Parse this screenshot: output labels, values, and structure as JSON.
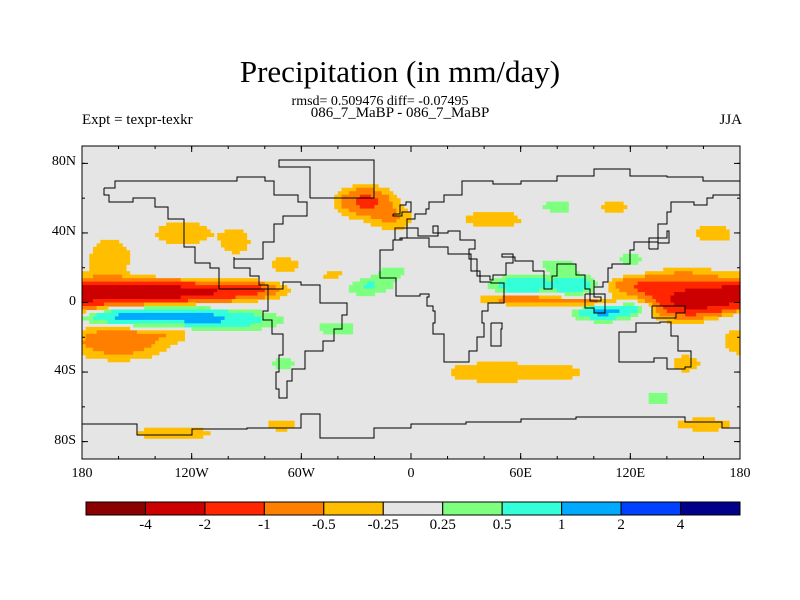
{
  "figure": {
    "title": "Precipitation (in mm/day)",
    "stats": "rmsd= 0.509476 diff= -0.07495",
    "subtitle": "086_7_MaBP - 086_7_MaBP",
    "experiment": "Expt = texpr-texkr",
    "season": "JJA"
  },
  "chart_data": {
    "type": "heatmap",
    "title": "Precipitation (in mm/day)",
    "variable": "Precipitation difference",
    "units": "mm/day",
    "projection": "cylindrical equidistant",
    "x_range": [
      180,
      -180
    ],
    "y_range": [
      -90,
      90
    ],
    "x_ticks": [
      "180",
      "120W",
      "60W",
      "0",
      "60E",
      "120E",
      "180"
    ],
    "y_ticks": [
      "80N",
      "40N",
      "0",
      "40S",
      "80S"
    ],
    "levels": [
      -4,
      -2,
      -1,
      -0.5,
      -0.25,
      0.25,
      0.5,
      1,
      2,
      4
    ],
    "colorbar_labels": [
      "-4",
      "-2",
      "-1",
      "-0.5",
      "-0.25",
      "0.25",
      "0.5",
      "1",
      "2",
      "4"
    ],
    "colors": [
      "#8b0000",
      "#cc0000",
      "#ff2600",
      "#ff7f00",
      "#ffbf00",
      "#e5e5e5",
      "#7fff7f",
      "#33ffd9",
      "#00aaff",
      "#0040ff",
      "#00008b"
    ],
    "background": "#e5e5e5",
    "blobs": [
      {
        "lon": -165,
        "lat": 6,
        "dlon": 40,
        "dlat": 6,
        "v": -2.6
      },
      {
        "lon": -120,
        "lat": 6,
        "dlon": 35,
        "dlat": 5,
        "v": -1.8
      },
      {
        "lon": -90,
        "lat": 8,
        "dlon": 15,
        "dlat": 4,
        "v": -0.8
      },
      {
        "lon": -150,
        "lat": -8,
        "dlon": 35,
        "dlat": 5,
        "v": 1.3
      },
      {
        "lon": -110,
        "lat": -10,
        "dlon": 35,
        "dlat": 6,
        "v": 0.9
      },
      {
        "lon": -160,
        "lat": -22,
        "dlon": 25,
        "dlat": 10,
        "v": -0.9
      },
      {
        "lon": -130,
        "lat": -15,
        "dlon": 12,
        "dlat": 6,
        "v": -0.5
      },
      {
        "lon": -165,
        "lat": 25,
        "dlon": 15,
        "dlat": 15,
        "v": -0.4
      },
      {
        "lon": -125,
        "lat": 40,
        "dlon": 20,
        "dlat": 10,
        "v": -0.4
      },
      {
        "lon": -95,
        "lat": 35,
        "dlon": 10,
        "dlat": 10,
        "v": -0.35
      },
      {
        "lon": -70,
        "lat": 22,
        "dlon": 12,
        "dlat": 7,
        "v": -0.35
      },
      {
        "lon": -40,
        "lat": 15,
        "dlon": 15,
        "dlat": 7,
        "v": -0.35
      },
      {
        "lon": -40,
        "lat": -15,
        "dlon": 15,
        "dlat": 6,
        "v": 0.35
      },
      {
        "lon": -25,
        "lat": 58,
        "dlon": 14,
        "dlat": 8,
        "v": -1.2
      },
      {
        "lon": -10,
        "lat": 48,
        "dlon": 12,
        "dlat": 7,
        "v": -0.5
      },
      {
        "lon": 45,
        "lat": 48,
        "dlon": 22,
        "dlat": 7,
        "v": -0.4
      },
      {
        "lon": 80,
        "lat": 55,
        "dlon": 15,
        "dlat": 6,
        "v": 0.35
      },
      {
        "lon": -25,
        "lat": 10,
        "dlon": 15,
        "dlat": 6,
        "v": 0.6
      },
      {
        "lon": -10,
        "lat": 18,
        "dlon": 10,
        "dlat": 5,
        "v": 0.35
      },
      {
        "lon": 60,
        "lat": 10,
        "dlon": 15,
        "dlat": 5,
        "v": 1.0
      },
      {
        "lon": 90,
        "lat": 10,
        "dlon": 15,
        "dlat": 6,
        "v": 0.8
      },
      {
        "lon": 60,
        "lat": 2,
        "dlon": 22,
        "dlat": 3,
        "v": -0.8
      },
      {
        "lon": 100,
        "lat": 0,
        "dlon": 20,
        "dlat": 3,
        "v": -0.9
      },
      {
        "lon": 80,
        "lat": 22,
        "dlon": 15,
        "dlat": 5,
        "v": 0.35
      },
      {
        "lon": 105,
        "lat": -5,
        "dlon": 15,
        "dlat": 5,
        "v": 1.2
      },
      {
        "lon": 125,
        "lat": -2,
        "dlon": 15,
        "dlat": 5,
        "v": 1.0
      },
      {
        "lon": 155,
        "lat": 0,
        "dlon": 28,
        "dlat": 8,
        "v": -2.4
      },
      {
        "lon": 125,
        "lat": 10,
        "dlon": 20,
        "dlat": 5,
        "v": -0.8
      },
      {
        "lon": 150,
        "lat": 15,
        "dlon": 22,
        "dlat": 6,
        "v": -0.5
      },
      {
        "lon": 165,
        "lat": 40,
        "dlon": 15,
        "dlat": 8,
        "v": -0.35
      },
      {
        "lon": 110,
        "lat": 55,
        "dlon": 15,
        "dlat": 5,
        "v": -0.35
      },
      {
        "lon": 150,
        "lat": -35,
        "dlon": 10,
        "dlat": 6,
        "v": -0.4
      },
      {
        "lon": 45,
        "lat": -40,
        "dlon": 35,
        "dlat": 8,
        "v": -0.4
      },
      {
        "lon": 80,
        "lat": -40,
        "dlon": 15,
        "dlat": 5,
        "v": -0.35
      },
      {
        "lon": 160,
        "lat": -70,
        "dlon": 20,
        "dlat": 5,
        "v": -0.4
      },
      {
        "lon": -130,
        "lat": -75,
        "dlon": 35,
        "dlat": 6,
        "v": -0.35
      },
      {
        "lon": -70,
        "lat": -70,
        "dlon": 12,
        "dlat": 5,
        "v": -0.35
      },
      {
        "lon": 135,
        "lat": -55,
        "dlon": 10,
        "dlat": 5,
        "v": 0.35
      },
      {
        "lon": -70,
        "lat": -35,
        "dlon": 10,
        "dlat": 5,
        "v": 0.35
      },
      {
        "lon": 120,
        "lat": 25,
        "dlon": 10,
        "dlat": 6,
        "v": 0.35
      }
    ],
    "coastlines": [
      [
        [
          -168,
          66
        ],
        [
          -162,
          70
        ],
        [
          -140,
          70
        ],
        [
          -120,
          70
        ],
        [
          -95,
          72
        ],
        [
          -80,
          70
        ],
        [
          -75,
          62
        ],
        [
          -62,
          58
        ],
        [
          -57,
          50
        ],
        [
          -70,
          45
        ],
        [
          -75,
          35
        ],
        [
          -81,
          25
        ],
        [
          -97,
          26
        ],
        [
          -97,
          20
        ],
        [
          -88,
          15
        ],
        [
          -83,
          10
        ],
        [
          -78,
          8
        ],
        [
          -105,
          20
        ],
        [
          -110,
          23
        ],
        [
          -118,
          32
        ],
        [
          -124,
          40
        ],
        [
          -124,
          48
        ],
        [
          -133,
          55
        ],
        [
          -140,
          60
        ],
        [
          -152,
          58
        ],
        [
          -165,
          62
        ],
        [
          -168,
          66
        ]
      ],
      [
        [
          -78,
          8
        ],
        [
          -70,
          12
        ],
        [
          -60,
          10
        ],
        [
          -50,
          0
        ],
        [
          -35,
          -7
        ],
        [
          -38,
          -15
        ],
        [
          -42,
          -22
        ],
        [
          -48,
          -28
        ],
        [
          -58,
          -38
        ],
        [
          -65,
          -45
        ],
        [
          -68,
          -55
        ],
        [
          -72,
          -50
        ],
        [
          -74,
          -40
        ],
        [
          -72,
          -30
        ],
        [
          -70,
          -18
        ],
        [
          -76,
          -10
        ],
        [
          -81,
          -5
        ],
        [
          -78,
          8
        ]
      ],
      [
        [
          -10,
          36
        ],
        [
          -9,
          43
        ],
        [
          -2,
          48
        ],
        [
          2,
          51
        ],
        [
          8,
          54
        ],
        [
          10,
          58
        ],
        [
          18,
          62
        ],
        [
          28,
          70
        ],
        [
          45,
          68
        ],
        [
          60,
          70
        ],
        [
          80,
          73
        ],
        [
          100,
          77
        ],
        [
          120,
          73
        ],
        [
          140,
          72
        ],
        [
          160,
          70
        ],
        [
          180,
          68
        ]
      ],
      [
        [
          180,
          62
        ],
        [
          165,
          60
        ],
        [
          162,
          56
        ],
        [
          155,
          58
        ],
        [
          142,
          52
        ],
        [
          140,
          45
        ],
        [
          135,
          35
        ],
        [
          122,
          30
        ],
        [
          120,
          22
        ],
        [
          110,
          20
        ],
        [
          108,
          12
        ],
        [
          105,
          9
        ],
        [
          100,
          13
        ],
        [
          100,
          3
        ],
        [
          104,
          1
        ],
        [
          98,
          8
        ],
        [
          95,
          16
        ],
        [
          90,
          22
        ],
        [
          80,
          15
        ],
        [
          77,
          8
        ],
        [
          73,
          18
        ],
        [
          67,
          24
        ],
        [
          57,
          26
        ],
        [
          50,
          28
        ],
        [
          56,
          23
        ],
        [
          52,
          16
        ],
        [
          45,
          13
        ],
        [
          43,
          15
        ],
        [
          36,
          25
        ],
        [
          32,
          31
        ],
        [
          35,
          36
        ],
        [
          27,
          37
        ],
        [
          27,
          41
        ],
        [
          20,
          40
        ],
        [
          12,
          44
        ],
        [
          15,
          38
        ],
        [
          4,
          43
        ],
        [
          -2,
          37
        ],
        [
          -5,
          36
        ],
        [
          -10,
          36
        ]
      ],
      [
        [
          -6,
          36
        ],
        [
          -10,
          30
        ],
        [
          -17,
          20
        ],
        [
          -17,
          14
        ],
        [
          -8,
          4
        ],
        [
          5,
          5
        ],
        [
          10,
          3
        ],
        [
          9,
          -2
        ],
        [
          12,
          -5
        ],
        [
          13,
          -12
        ],
        [
          12,
          -18
        ],
        [
          18,
          -34
        ],
        [
          25,
          -34
        ],
        [
          32,
          -28
        ],
        [
          36,
          -20
        ],
        [
          40,
          -12
        ],
        [
          39,
          -5
        ],
        [
          42,
          0
        ],
        [
          51,
          11
        ],
        [
          44,
          12
        ],
        [
          38,
          18
        ],
        [
          33,
          28
        ],
        [
          20,
          32
        ],
        [
          10,
          37
        ],
        [
          -6,
          36
        ]
      ],
      [
        [
          114,
          -22
        ],
        [
          114,
          -34
        ],
        [
          122,
          -34
        ],
        [
          133,
          -32
        ],
        [
          140,
          -38
        ],
        [
          150,
          -37
        ],
        [
          153,
          -28
        ],
        [
          146,
          -19
        ],
        [
          142,
          -11
        ],
        [
          136,
          -12
        ],
        [
          130,
          -12
        ],
        [
          123,
          -17
        ],
        [
          114,
          -22
        ]
      ],
      [
        [
          -55,
          60
        ],
        [
          -45,
          60
        ],
        [
          -20,
          70
        ],
        [
          -20,
          82
        ],
        [
          -60,
          82
        ],
        [
          -72,
          78
        ],
        [
          -55,
          60
        ]
      ],
      [
        [
          -180,
          -70
        ],
        [
          -150,
          -76
        ],
        [
          -120,
          -73
        ],
        [
          -90,
          -72
        ],
        [
          -60,
          -64
        ],
        [
          -50,
          -78
        ],
        [
          -20,
          -72
        ],
        [
          0,
          -70
        ],
        [
          30,
          -69
        ],
        [
          60,
          -67
        ],
        [
          90,
          -66
        ],
        [
          120,
          -66
        ],
        [
          150,
          -69
        ],
        [
          170,
          -72
        ],
        [
          180,
          -70
        ]
      ],
      [
        [
          44,
          -12
        ],
        [
          50,
          -15
        ],
        [
          49,
          -25
        ],
        [
          44,
          -24
        ],
        [
          44,
          -12
        ]
      ],
      [
        [
          -10,
          51
        ],
        [
          -6,
          56
        ],
        [
          -3,
          58
        ],
        [
          0,
          52
        ],
        [
          -5,
          50
        ],
        [
          -10,
          51
        ]
      ],
      [
        [
          130,
          31
        ],
        [
          135,
          34
        ],
        [
          141,
          41
        ],
        [
          140,
          37
        ],
        [
          130,
          31
        ]
      ],
      [
        [
          95,
          5
        ],
        [
          106,
          -6
        ],
        [
          100,
          -3
        ],
        [
          95,
          5
        ]
      ],
      [
        [
          132,
          -2
        ],
        [
          150,
          -6
        ],
        [
          145,
          -9
        ],
        [
          132,
          -2
        ]
      ]
    ]
  }
}
